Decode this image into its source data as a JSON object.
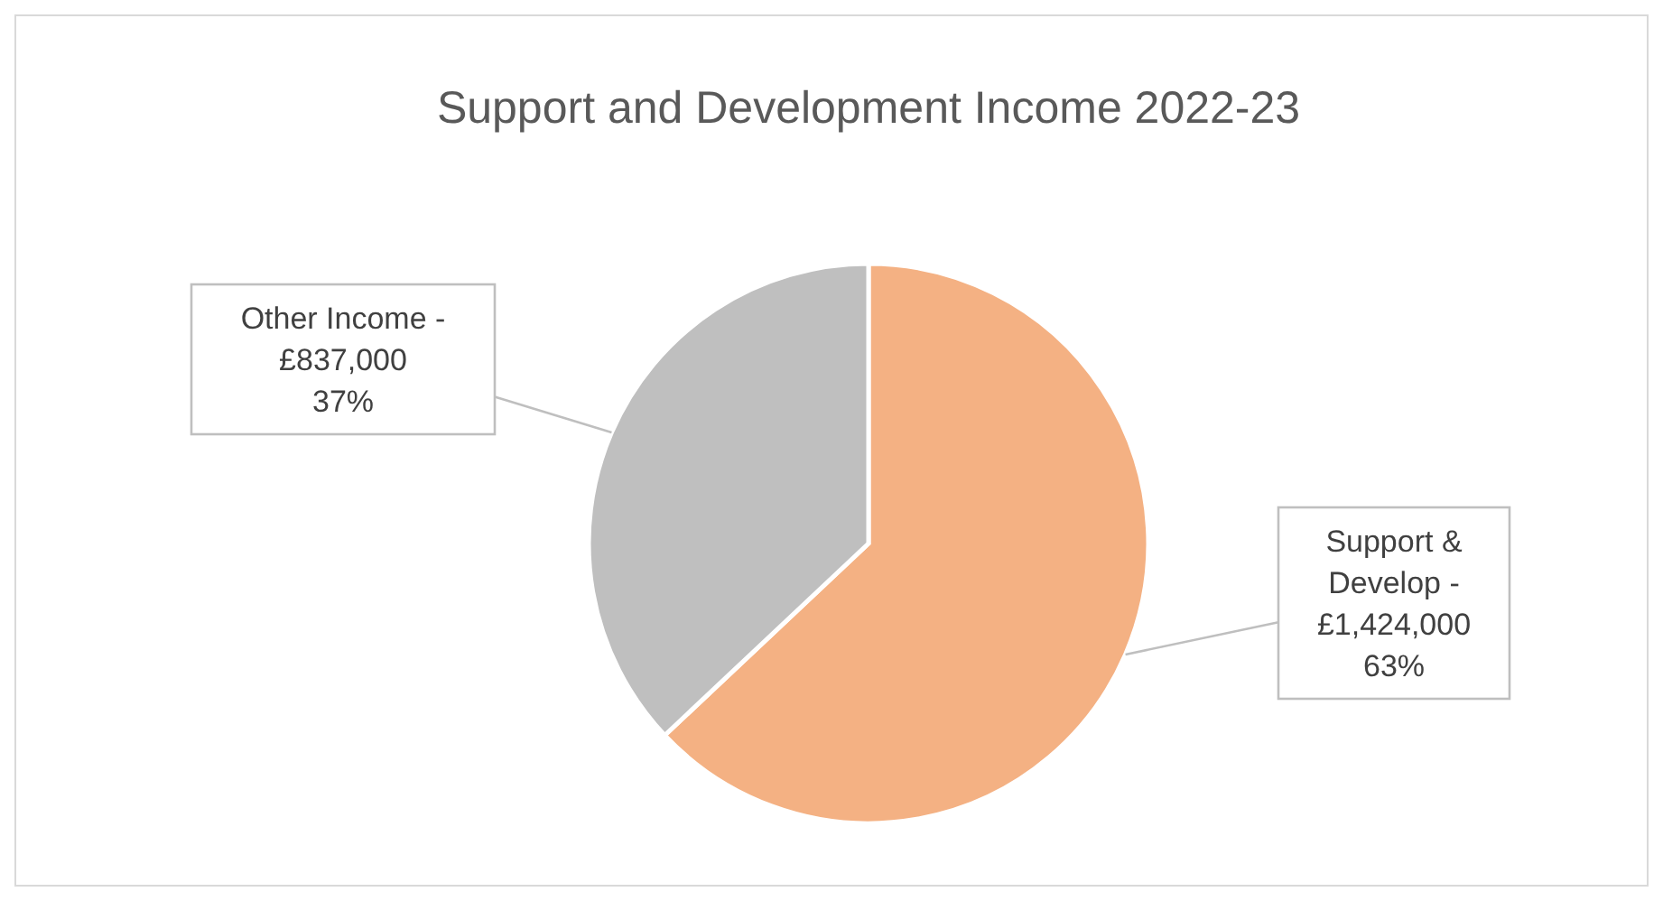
{
  "chart_data": {
    "type": "pie",
    "title": "Support and Development Income 2022-23",
    "categories": [
      "Support & Develop -",
      "Other Income -"
    ],
    "values": [
      1424000,
      837000
    ],
    "colors": [
      "#f4b183",
      "#bfbfbf"
    ],
    "value_labels": [
      "£1,424,000 63%",
      "£837,000 37%"
    ]
  }
}
